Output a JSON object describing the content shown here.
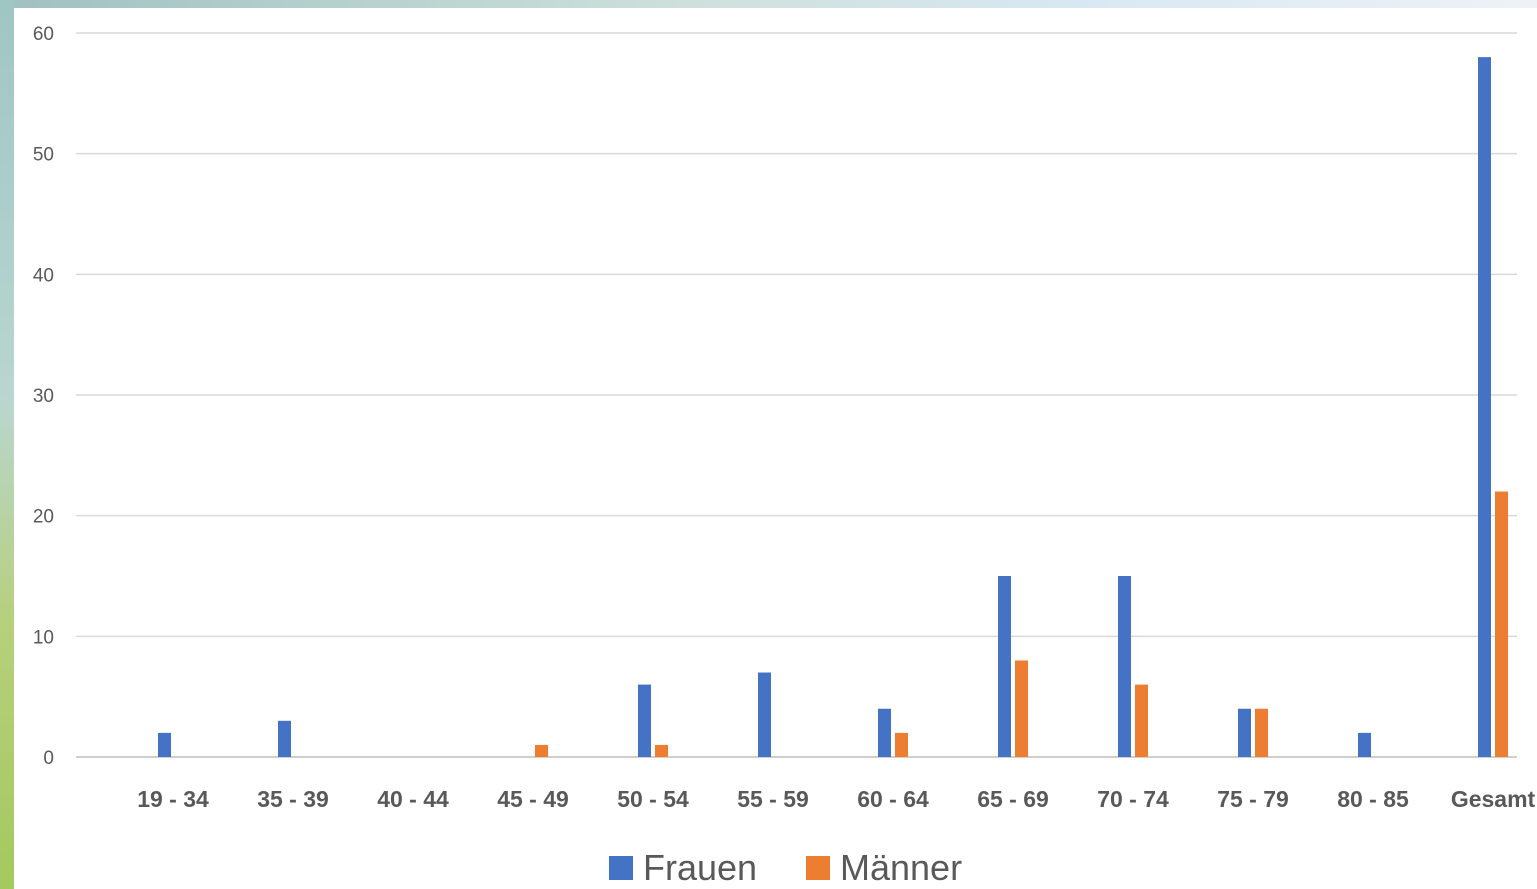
{
  "chart_data": {
    "type": "bar",
    "title": "",
    "xlabel": "",
    "ylabel": "",
    "categories": [
      "19 - 34",
      "35 - 39",
      "40 - 44",
      "45 - 49",
      "50 - 54",
      "55 - 59",
      "60 - 64",
      "65 - 69",
      "70 - 74",
      "75 - 79",
      "80 - 85",
      "Gesamt"
    ],
    "series": [
      {
        "name": "Frauen",
        "color": "#4472C4",
        "values": [
          2,
          3,
          0,
          0,
          6,
          7,
          4,
          15,
          15,
          4,
          2,
          58
        ]
      },
      {
        "name": "Männer",
        "color": "#ED7D31",
        "values": [
          0,
          0,
          0,
          1,
          1,
          0,
          2,
          8,
          6,
          4,
          0,
          22
        ]
      }
    ],
    "ylim": [
      0,
      60
    ],
    "yticks": [
      "0",
      "10",
      "20",
      "30",
      "40",
      "50",
      "60"
    ],
    "grid": true,
    "legend_position": "bottom"
  }
}
